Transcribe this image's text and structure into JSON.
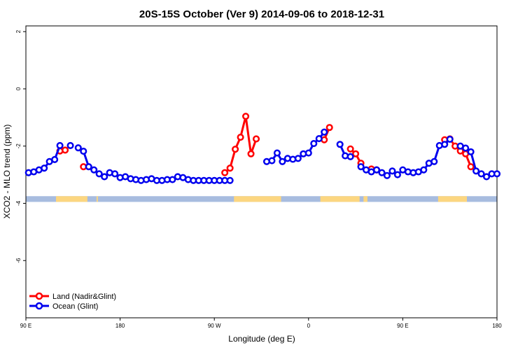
{
  "chart_data": {
    "type": "line",
    "title": "20S-15S October (Ver 9)   2014-09-06 to 2018-12-31",
    "xlabel": "Longitude (deg E)",
    "ylabel": "XCO2 - MLO trend (ppm)",
    "xlim": [
      90,
      450
    ],
    "ylim": [
      -8,
      2.2
    ],
    "x_ticks": [
      {
        "value": 90,
        "label": "90 E"
      },
      {
        "value": 162,
        "label": "180"
      },
      {
        "value": 234,
        "label": "90 W"
      },
      {
        "value": 306,
        "label": "0"
      },
      {
        "value": 378,
        "label": "90 E"
      },
      {
        "value": 450,
        "label": "180"
      }
    ],
    "y_ticks": [
      {
        "value": 2,
        "label": "2"
      },
      {
        "value": 0,
        "label": "0"
      },
      {
        "value": -2,
        "label": "-2"
      },
      {
        "value": -4,
        "label": "-4"
      },
      {
        "value": -6,
        "label": "-6"
      }
    ],
    "grid": false,
    "legend_position": "bottom-left",
    "series": [
      {
        "name": "Land (Nadir&Glint)",
        "color": "#ff0000",
        "x": [
          116,
          120,
          134,
          242,
          246,
          250,
          254,
          258,
          262,
          266,
          318,
          322,
          338,
          342,
          346,
          354,
          358,
          410,
          414,
          418,
          422,
          426,
          430
        ],
        "y": [
          -2.17,
          -2.14,
          -2.72,
          -2.93,
          -2.77,
          -2.11,
          -1.69,
          -0.96,
          -2.27,
          -1.75,
          -1.78,
          -1.35,
          -2.1,
          -2.27,
          -2.6,
          -2.8,
          -2.83,
          -1.78,
          -1.75,
          -2.0,
          -2.17,
          -2.27,
          -2.72
        ]
      },
      {
        "name": "Ocean (Glint)",
        "color": "#0000ee",
        "x": [
          92,
          96,
          100,
          104,
          108,
          112,
          116,
          124,
          130,
          134,
          138,
          142,
          146,
          150,
          154,
          158,
          162,
          166,
          170,
          174,
          178,
          182,
          186,
          190,
          194,
          198,
          202,
          206,
          210,
          214,
          218,
          222,
          226,
          230,
          234,
          238,
          242,
          246,
          274,
          278,
          282,
          286,
          290,
          294,
          298,
          302,
          306,
          310,
          314,
          318,
          330,
          334,
          338,
          346,
          350,
          354,
          358,
          362,
          366,
          370,
          374,
          378,
          382,
          386,
          390,
          394,
          398,
          402,
          406,
          410,
          414,
          422,
          426,
          430,
          434,
          438,
          442,
          446,
          450
        ],
        "y": [
          -2.93,
          -2.9,
          -2.83,
          -2.77,
          -2.54,
          -2.47,
          -1.98,
          -1.98,
          -2.06,
          -2.18,
          -2.72,
          -2.83,
          -2.97,
          -3.07,
          -2.93,
          -2.97,
          -3.1,
          -3.07,
          -3.14,
          -3.17,
          -3.2,
          -3.17,
          -3.14,
          -3.2,
          -3.2,
          -3.17,
          -3.17,
          -3.07,
          -3.1,
          -3.17,
          -3.2,
          -3.2,
          -3.2,
          -3.2,
          -3.2,
          -3.2,
          -3.2,
          -3.2,
          -2.54,
          -2.51,
          -2.24,
          -2.54,
          -2.43,
          -2.46,
          -2.43,
          -2.27,
          -2.24,
          -1.91,
          -1.74,
          -1.51,
          -1.94,
          -2.34,
          -2.37,
          -2.72,
          -2.83,
          -2.9,
          -2.83,
          -2.93,
          -3.03,
          -2.87,
          -3.0,
          -2.83,
          -2.9,
          -2.93,
          -2.9,
          -2.83,
          -2.6,
          -2.54,
          -1.98,
          -1.94,
          -1.76,
          -2.0,
          -2.07,
          -2.2,
          -2.87,
          -2.97,
          -3.07,
          -2.97,
          -2.97
        ]
      }
    ],
    "surface_band": {
      "y_range": [
        -3.95,
        -3.75
      ],
      "ocean_color": "#a7bcdf",
      "land_color": "#fcd680",
      "land_segments": [
        [
          113,
          137
        ],
        [
          144,
          145
        ],
        [
          249,
          285
        ],
        [
          315,
          345
        ],
        [
          348,
          351
        ],
        [
          405,
          427
        ]
      ]
    }
  },
  "legend": {
    "land_label": "Land (Nadir&Glint)",
    "ocean_label": "Ocean (Glint)"
  }
}
